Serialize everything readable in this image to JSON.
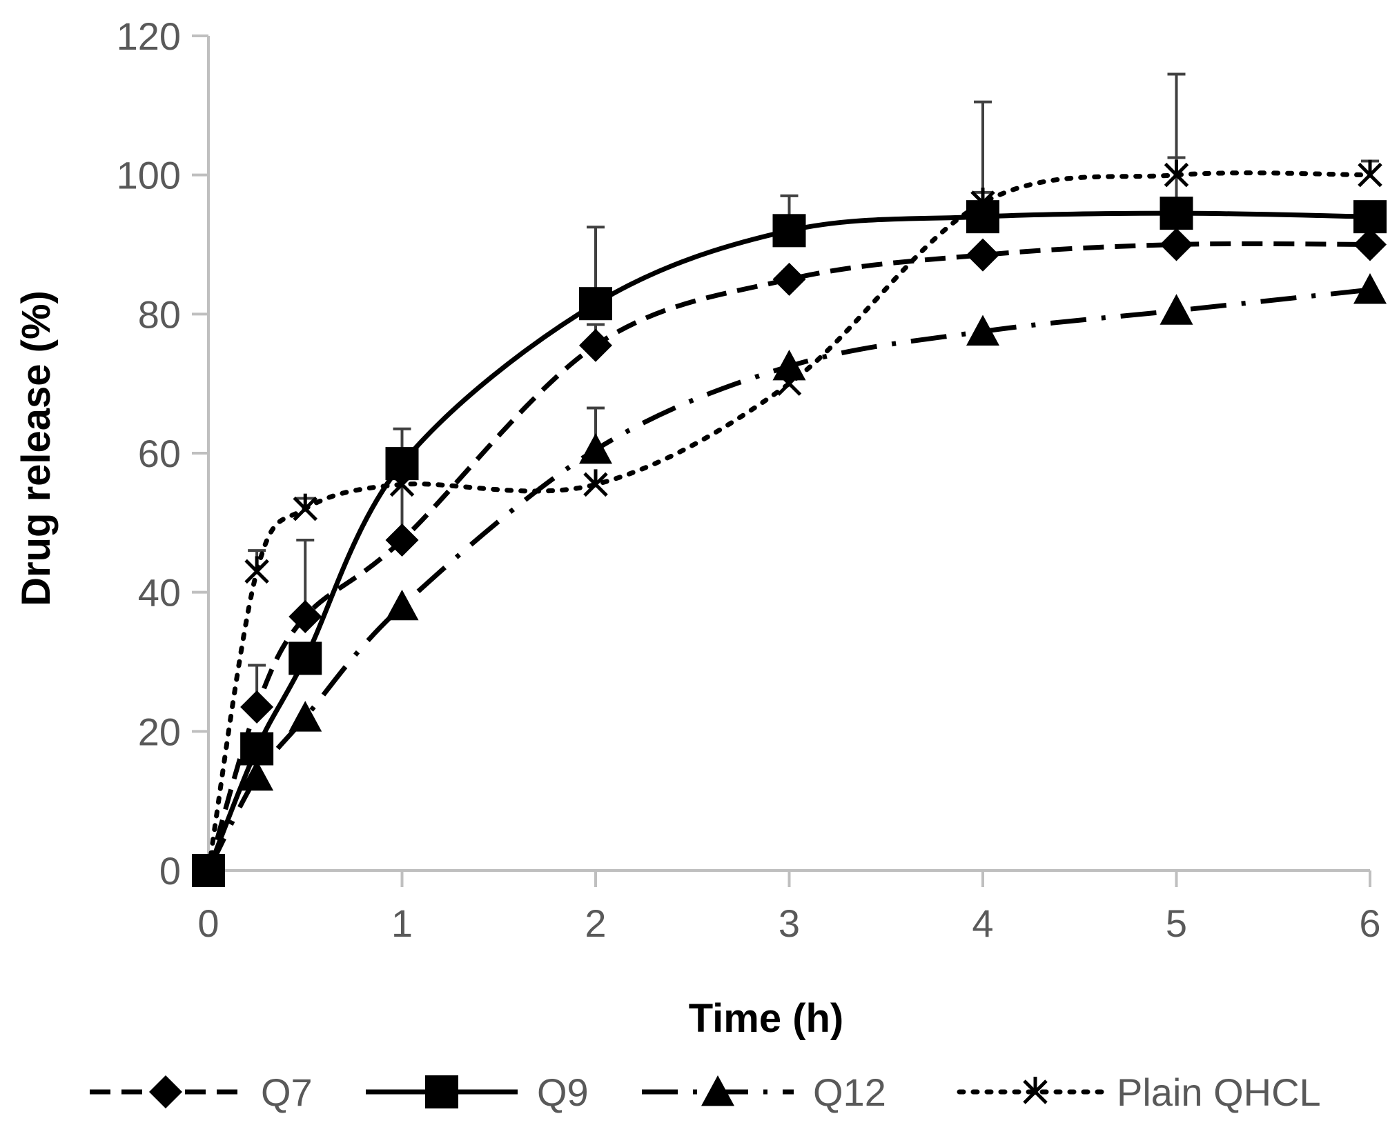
{
  "chart_data": {
    "type": "line",
    "title": "",
    "xlabel": "Time (h)",
    "ylabel": "Drug release (%)",
    "xlim": [
      0,
      6
    ],
    "ylim": [
      0,
      120
    ],
    "xticks": [
      0,
      1,
      2,
      3,
      4,
      5,
      6
    ],
    "yticks": [
      0,
      20,
      40,
      60,
      80,
      100,
      120
    ],
    "grid": false,
    "legend_position": "bottom",
    "x": [
      0,
      0.25,
      0.5,
      1,
      2,
      3,
      4,
      5,
      6
    ],
    "series": [
      {
        "name": "Q7",
        "marker": "diamond",
        "dash": "dashed",
        "values": [
          0,
          23.5,
          36.5,
          47.5,
          75.5,
          85,
          88.5,
          90,
          90
        ],
        "errors": [
          0,
          6,
          11,
          9,
          3,
          0,
          0,
          0,
          0
        ],
        "color": "#000000"
      },
      {
        "name": "Q9",
        "marker": "square",
        "dash": "solid",
        "values": [
          0,
          17.5,
          30.5,
          58.5,
          81.5,
          92,
          94,
          94.5,
          94
        ],
        "errors": [
          0,
          0,
          0,
          5,
          11,
          5,
          16.5,
          20,
          0
        ],
        "color": "#000000"
      },
      {
        "name": "Q12",
        "marker": "triangle",
        "dash": "long-dash-dot",
        "values": [
          0,
          13.5,
          22,
          38,
          60.5,
          72.5,
          77.5,
          80.5,
          83.5
        ],
        "errors": [
          0,
          0,
          0,
          0,
          6,
          0,
          0,
          0,
          0
        ],
        "color": "#000000"
      },
      {
        "name": "Plain QHCL",
        "marker": "star",
        "dash": "dotted",
        "values": [
          0,
          43,
          52,
          55.5,
          55.5,
          70,
          96,
          100,
          100
        ],
        "errors": [
          0,
          3,
          1.5,
          2,
          0,
          0,
          1.5,
          2.5,
          2
        ],
        "color": "#000000"
      }
    ],
    "axis_color": "#bfbfbf",
    "errorbar_color": "#404040"
  }
}
